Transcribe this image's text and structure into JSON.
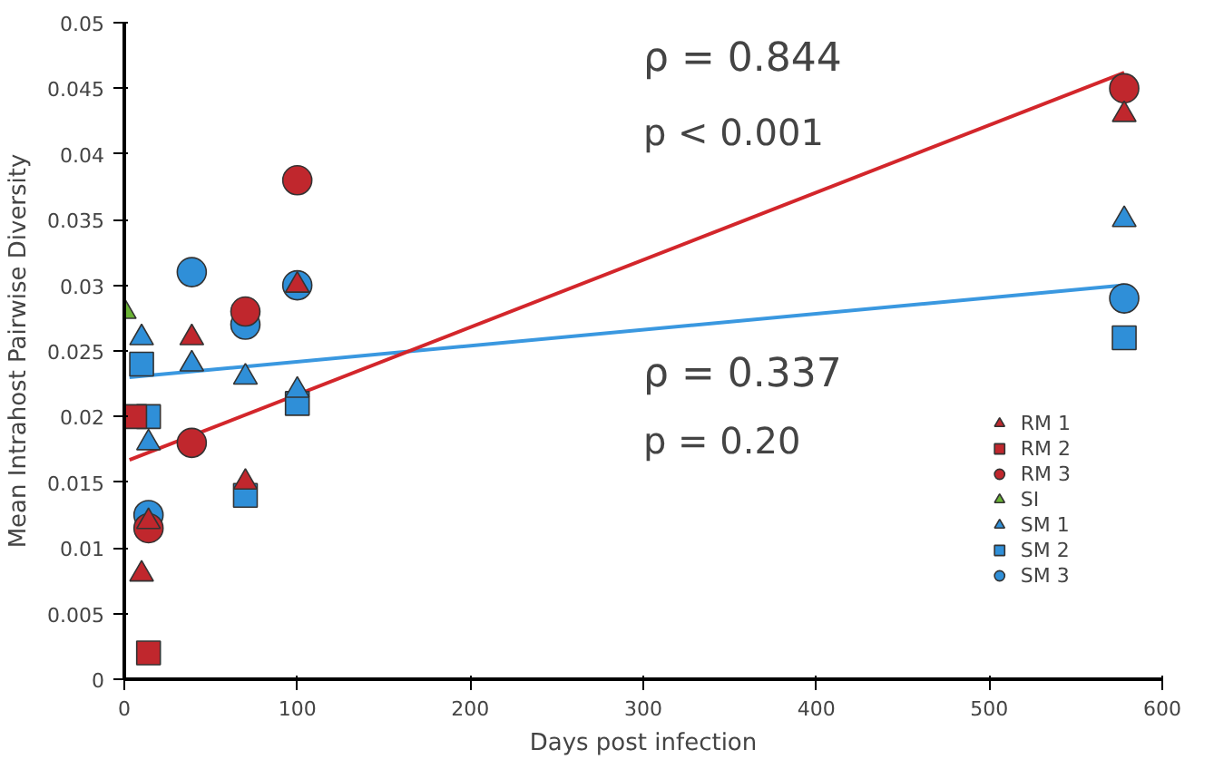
{
  "chart_data": {
    "type": "scatter",
    "xlabel": "Days post infection",
    "ylabel": "Mean Intrahost Pairwise Diversity",
    "xlim": [
      0,
      600
    ],
    "xticks": [
      0,
      100,
      200,
      300,
      400,
      500,
      600
    ],
    "ylim": [
      0,
      0.05
    ],
    "yticks": [
      0,
      0.005,
      0.01,
      0.015,
      0.02,
      0.025,
      0.03,
      0.035,
      0.04,
      0.045,
      0.05
    ],
    "grid": false,
    "legend": "bottom right",
    "annotations": [
      "ρ = 0.844",
      "p < 0.001",
      "ρ = 0.337",
      "p = 0.20"
    ],
    "series": [
      {
        "name": "RM 1",
        "color": "#c0272d",
        "marker": "triangle",
        "x": [
          10,
          14,
          39,
          70,
          100,
          578
        ],
        "values": [
          0.008,
          0.012,
          0.026,
          0.015,
          0.03,
          0.043
        ]
      },
      {
        "name": "RM 2",
        "color": "#c0272d",
        "marker": "square",
        "x": [
          6,
          14
        ],
        "values": [
          0.02,
          0.002
        ]
      },
      {
        "name": "RM 3",
        "color": "#c0272d",
        "marker": "circle",
        "x": [
          14,
          39,
          70,
          100,
          578
        ],
        "values": [
          0.0115,
          0.018,
          0.028,
          0.038,
          0.045
        ]
      },
      {
        "name": "SI",
        "color": "#6ab335",
        "marker": "triangle",
        "x": [
          0
        ],
        "values": [
          0.028
        ]
      },
      {
        "name": "SM 1",
        "color": "#2f8fd8",
        "marker": "triangle",
        "x": [
          10,
          14,
          39,
          70,
          100,
          578
        ],
        "values": [
          0.026,
          0.018,
          0.024,
          0.023,
          0.022,
          0.035
        ]
      },
      {
        "name": "SM 2",
        "color": "#2f8fd8",
        "marker": "square",
        "x": [
          10,
          14,
          70,
          100,
          578
        ],
        "values": [
          0.024,
          0.02,
          0.014,
          0.021,
          0.026
        ]
      },
      {
        "name": "SM 3",
        "color": "#2f8fd8",
        "marker": "circle",
        "x": [
          14,
          39,
          70,
          100,
          578
        ],
        "values": [
          0.0125,
          0.031,
          0.027,
          0.03,
          0.029
        ]
      },
      {
        "type": "line",
        "color": "#d3262b",
        "x": [
          3,
          578
        ],
        "values": [
          0.0167,
          0.0462
        ]
      },
      {
        "type": "line",
        "color": "#3a98e0",
        "x": [
          3,
          578
        ],
        "values": [
          0.023,
          0.03
        ]
      }
    ]
  }
}
